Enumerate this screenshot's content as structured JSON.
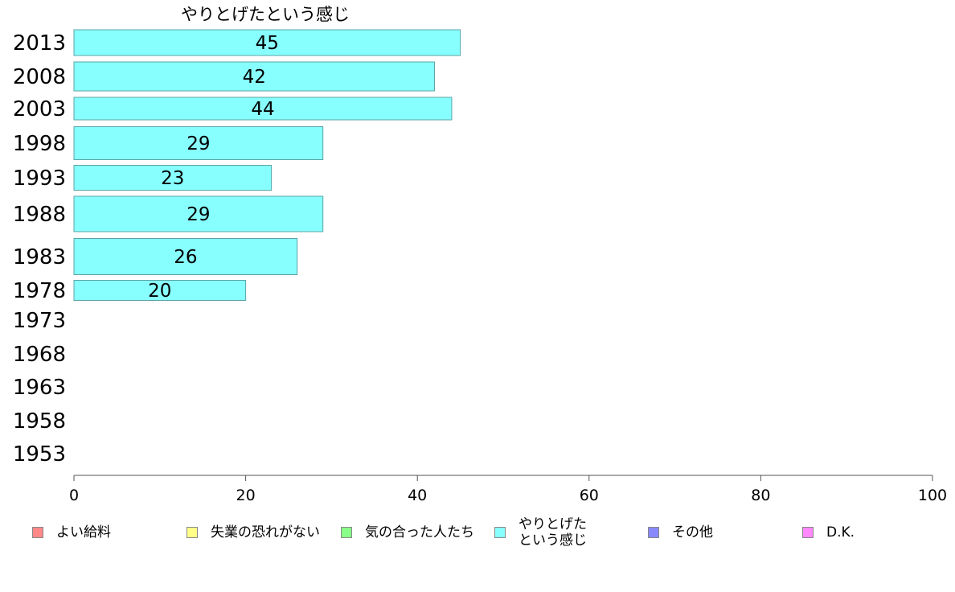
{
  "chart_data": {
    "type": "bar",
    "orientation": "horizontal",
    "title": "やりとげたという感じ",
    "categories": [
      "2013",
      "2008",
      "2003",
      "1998",
      "1993",
      "1988",
      "1983",
      "1978",
      "1973",
      "1968",
      "1963",
      "1958",
      "1953"
    ],
    "values": [
      45,
      42,
      44,
      29,
      23,
      29,
      26,
      20,
      null,
      null,
      null,
      null,
      null
    ],
    "data_labels": [
      "45",
      "42",
      "44",
      "29",
      "23",
      "29",
      "26",
      "20",
      "",
      "",
      "",
      "",
      ""
    ],
    "xlim": [
      0,
      100
    ],
    "xticks": [
      "0",
      "20",
      "40",
      "60",
      "80",
      "100"
    ],
    "bar_color": "#88ffff",
    "bar_border_color": "#5aa5a5",
    "grid": false,
    "legend_position": "bottom",
    "legend": [
      {
        "label": "よい給料",
        "color": "#ff8888"
      },
      {
        "label": "失業の恐れがない",
        "color": "#ffff88"
      },
      {
        "label": "気の合った人たち",
        "color": "#88ff88"
      },
      {
        "label": "やりとげた\nという感じ",
        "color": "#88ffff"
      },
      {
        "label": "その他",
        "color": "#8888ff"
      },
      {
        "label": "D.K.",
        "color": "#ff88ff"
      }
    ]
  }
}
